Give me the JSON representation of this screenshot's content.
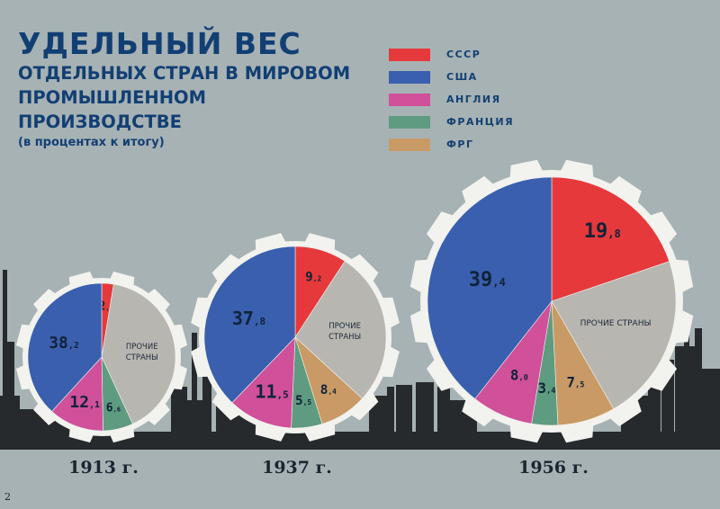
{
  "title": {
    "main": "УДЕЛЬНЫЙ ВЕС",
    "line1": "ОТДЕЛЬНЫХ СТРАН В МИРОВОМ",
    "line2": "ПРОМЫШЛЕННОМ",
    "line3": "ПРОИЗВОДСТВЕ",
    "note": "(в процентах к итогу)"
  },
  "legend": [
    {
      "label": "СССР",
      "color": "#e5393c"
    },
    {
      "label": "США",
      "color": "#3a5fae"
    },
    {
      "label": "АНГЛИЯ",
      "color": "#d0509a"
    },
    {
      "label": "ФРАНЦИЯ",
      "color": "#5e9b80"
    },
    {
      "label": "ФРГ",
      "color": "#c99a66"
    }
  ],
  "other_color": "#b8b6b0",
  "page_number": "2",
  "chart_data": [
    {
      "type": "pie",
      "label": "1913 г.",
      "slices": [
        {
          "key": "ussr",
          "value": 2.6,
          "label_int": "2",
          "label_dec": "6",
          "color": "#e5393c"
        },
        {
          "key": "other",
          "value": 40.5,
          "label": "ПРОЧИЕ СТРАНЫ",
          "color": "#b8b6b0"
        },
        {
          "key": "france",
          "value": 6.6,
          "label_int": "6",
          "label_dec": "6",
          "color": "#5e9b80"
        },
        {
          "key": "england",
          "value": 12.1,
          "label_int": "12",
          "label_dec": "1",
          "color": "#d0509a"
        },
        {
          "key": "usa",
          "value": 38.2,
          "label_int": "38",
          "label_dec": "2",
          "color": "#3a5fae"
        }
      ]
    },
    {
      "type": "pie",
      "label": "1937 г.",
      "slices": [
        {
          "key": "ussr",
          "value": 9.2,
          "label_int": "9",
          "label_dec": "2",
          "color": "#e5393c"
        },
        {
          "key": "other",
          "value": 27.6,
          "label": "ПРОЧИЕ СТРАНЫ",
          "color": "#b8b6b0"
        },
        {
          "key": "frg",
          "value": 8.4,
          "label_int": "8",
          "label_dec": "4",
          "color": "#c99a66"
        },
        {
          "key": "france",
          "value": 5.5,
          "label_int": "5",
          "label_dec": "5",
          "color": "#5e9b80"
        },
        {
          "key": "england",
          "value": 11.5,
          "label_int": "11",
          "label_dec": "5",
          "color": "#d0509a"
        },
        {
          "key": "usa",
          "value": 37.8,
          "label_int": "37",
          "label_dec": "8",
          "color": "#3a5fae"
        }
      ]
    },
    {
      "type": "pie",
      "label": "1956 г.",
      "slices": [
        {
          "key": "ussr",
          "value": 19.8,
          "label_int": "19",
          "label_dec": "8",
          "color": "#e5393c"
        },
        {
          "key": "other",
          "value": 21.9,
          "label": "ПРОЧИЕ СТРАНЫ",
          "color": "#b8b6b0"
        },
        {
          "key": "frg",
          "value": 7.5,
          "label_int": "7",
          "label_dec": "5",
          "color": "#c99a66"
        },
        {
          "key": "france",
          "value": 3.4,
          "label_int": "3",
          "label_dec": "4",
          "color": "#5e9b80"
        },
        {
          "key": "england",
          "value": 8.0,
          "label_int": "8",
          "label_dec": "0",
          "color": "#d0509a"
        },
        {
          "key": "usa",
          "value": 39.4,
          "label_int": "39",
          "label_dec": "4",
          "color": "#3a5fae"
        }
      ]
    }
  ]
}
